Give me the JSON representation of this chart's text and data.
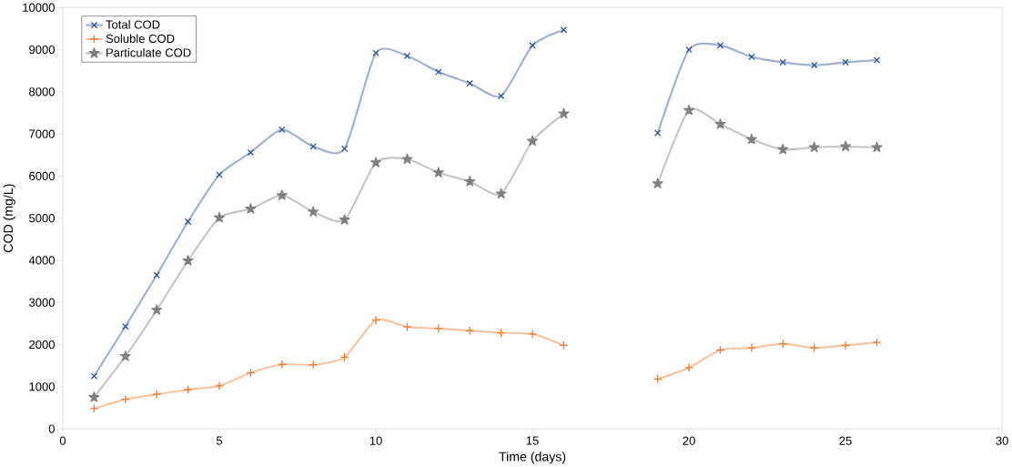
{
  "chart_data": {
    "type": "line",
    "xlabel": "Time (days)",
    "ylabel": "COD (mg/L)",
    "x": [
      1,
      2,
      3,
      4,
      5,
      6,
      7,
      8,
      9,
      10,
      11,
      12,
      13,
      14,
      15,
      16,
      17,
      18,
      19,
      20,
      21,
      22,
      23,
      24,
      25,
      26
    ],
    "series": [
      {
        "name": "Total COD",
        "color": "#2f5597",
        "marker": "cross",
        "values": [
          1250,
          2430,
          3650,
          4920,
          6030,
          6560,
          7100,
          6700,
          6650,
          8920,
          8850,
          8470,
          8200,
          7900,
          9100,
          9470,
          null,
          null,
          7020,
          9000,
          9100,
          8830,
          8700,
          8630,
          8700,
          8750
        ]
      },
      {
        "name": "Soluble COD",
        "color": "#ed7d31",
        "marker": "plus",
        "values": [
          480,
          700,
          820,
          930,
          1020,
          1330,
          1530,
          1520,
          1700,
          2580,
          2420,
          2380,
          2330,
          2280,
          2250,
          1980,
          null,
          null,
          1180,
          1450,
          1870,
          1920,
          2020,
          1920,
          1980,
          2050
        ]
      },
      {
        "name": "Particulate COD",
        "color": "#7f7f7f",
        "marker": "star",
        "values": [
          750,
          1720,
          2820,
          3990,
          5010,
          5220,
          5540,
          5150,
          4960,
          6320,
          6400,
          6080,
          5870,
          5580,
          6830,
          7480,
          null,
          null,
          5820,
          7560,
          7230,
          6870,
          6630,
          6680,
          6700,
          6680
        ]
      }
    ],
    "xlim": [
      0,
      30
    ],
    "xticks": [
      0,
      5,
      10,
      15,
      20,
      25,
      30
    ],
    "ylim": [
      0,
      10000
    ],
    "yticks": [
      0,
      1000,
      2000,
      3000,
      4000,
      5000,
      6000,
      7000,
      8000,
      9000,
      10000
    ],
    "legend": "top left",
    "grid": false,
    "line_style": "solid"
  }
}
